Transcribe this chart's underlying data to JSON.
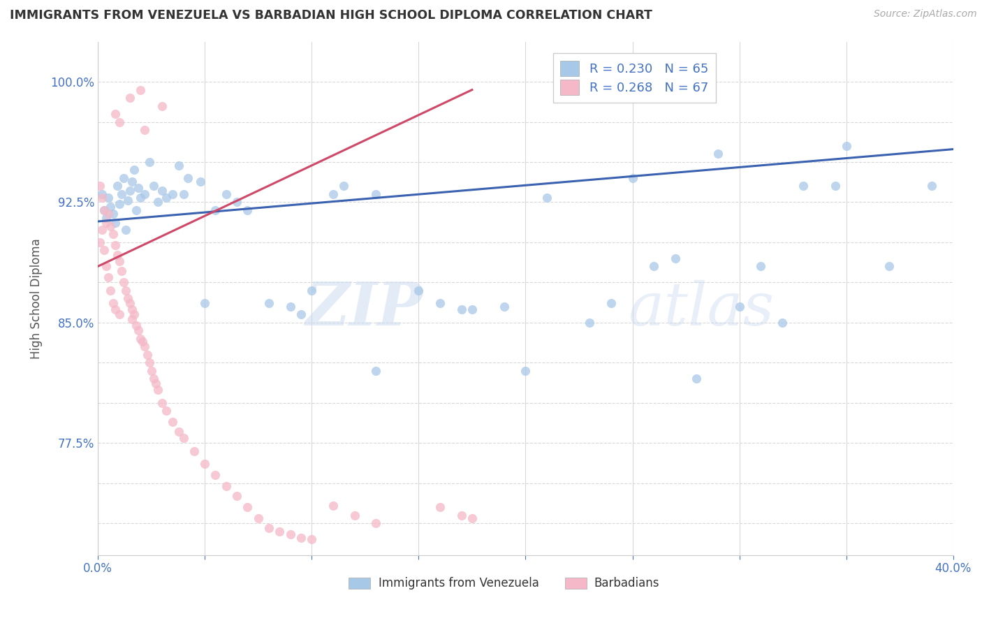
{
  "title": "IMMIGRANTS FROM VENEZUELA VS BARBADIAN HIGH SCHOOL DIPLOMA CORRELATION CHART",
  "source": "Source: ZipAtlas.com",
  "ylabel": "High School Diploma",
  "yticks": [
    0.725,
    0.75,
    0.775,
    0.8,
    0.825,
    0.85,
    0.875,
    0.9,
    0.925,
    0.95,
    0.975,
    1.0
  ],
  "ytick_labels": [
    "",
    "",
    "77.5%",
    "",
    "",
    "85.0%",
    "",
    "",
    "92.5%",
    "",
    "",
    "100.0%"
  ],
  "xlim": [
    0.0,
    0.4
  ],
  "ylim": [
    0.705,
    1.025
  ],
  "watermark_zip": "ZIP",
  "watermark_atlas": "atlas",
  "blue_scatter_x": [
    0.002,
    0.003,
    0.004,
    0.005,
    0.006,
    0.007,
    0.008,
    0.009,
    0.01,
    0.011,
    0.012,
    0.013,
    0.014,
    0.015,
    0.016,
    0.017,
    0.018,
    0.019,
    0.02,
    0.022,
    0.024,
    0.026,
    0.028,
    0.03,
    0.032,
    0.035,
    0.038,
    0.042,
    0.048,
    0.055,
    0.06,
    0.065,
    0.07,
    0.08,
    0.09,
    0.1,
    0.115,
    0.13,
    0.15,
    0.17,
    0.19,
    0.21,
    0.23,
    0.25,
    0.27,
    0.29,
    0.31,
    0.33,
    0.35,
    0.37,
    0.39,
    0.13,
    0.2,
    0.32,
    0.28,
    0.16,
    0.04,
    0.05,
    0.11,
    0.095,
    0.175,
    0.24,
    0.26,
    0.3,
    0.345
  ],
  "blue_scatter_y": [
    0.93,
    0.92,
    0.915,
    0.928,
    0.922,
    0.918,
    0.912,
    0.935,
    0.924,
    0.93,
    0.94,
    0.908,
    0.926,
    0.932,
    0.938,
    0.945,
    0.92,
    0.934,
    0.928,
    0.93,
    0.95,
    0.935,
    0.925,
    0.932,
    0.928,
    0.93,
    0.948,
    0.94,
    0.938,
    0.92,
    0.93,
    0.925,
    0.92,
    0.862,
    0.86,
    0.87,
    0.935,
    0.93,
    0.87,
    0.858,
    0.86,
    0.928,
    0.85,
    0.94,
    0.89,
    0.955,
    0.885,
    0.935,
    0.96,
    0.885,
    0.935,
    0.82,
    0.82,
    0.85,
    0.815,
    0.862,
    0.93,
    0.862,
    0.93,
    0.855,
    0.858,
    0.862,
    0.885,
    0.86,
    0.935
  ],
  "pink_scatter_x": [
    0.001,
    0.001,
    0.002,
    0.002,
    0.003,
    0.003,
    0.004,
    0.004,
    0.005,
    0.005,
    0.006,
    0.006,
    0.007,
    0.007,
    0.008,
    0.008,
    0.009,
    0.01,
    0.01,
    0.011,
    0.012,
    0.013,
    0.014,
    0.015,
    0.016,
    0.016,
    0.017,
    0.018,
    0.019,
    0.02,
    0.021,
    0.022,
    0.023,
    0.024,
    0.025,
    0.026,
    0.027,
    0.028,
    0.03,
    0.032,
    0.035,
    0.038,
    0.04,
    0.045,
    0.05,
    0.055,
    0.06,
    0.065,
    0.07,
    0.075,
    0.08,
    0.085,
    0.09,
    0.095,
    0.1,
    0.11,
    0.12,
    0.13,
    0.16,
    0.17,
    0.175,
    0.02,
    0.015,
    0.03,
    0.008,
    0.01,
    0.022
  ],
  "pink_scatter_y": [
    0.935,
    0.9,
    0.928,
    0.908,
    0.92,
    0.895,
    0.912,
    0.885,
    0.918,
    0.878,
    0.91,
    0.87,
    0.905,
    0.862,
    0.898,
    0.858,
    0.892,
    0.888,
    0.855,
    0.882,
    0.875,
    0.87,
    0.865,
    0.862,
    0.858,
    0.852,
    0.855,
    0.848,
    0.845,
    0.84,
    0.838,
    0.835,
    0.83,
    0.825,
    0.82,
    0.815,
    0.812,
    0.808,
    0.8,
    0.795,
    0.788,
    0.782,
    0.778,
    0.77,
    0.762,
    0.755,
    0.748,
    0.742,
    0.735,
    0.728,
    0.722,
    0.72,
    0.718,
    0.716,
    0.715,
    0.736,
    0.73,
    0.725,
    0.735,
    0.73,
    0.728,
    0.995,
    0.99,
    0.985,
    0.98,
    0.975,
    0.97
  ],
  "blue_line_x": [
    0.0,
    0.4
  ],
  "blue_line_y": [
    0.913,
    0.958
  ],
  "pink_line_x": [
    0.0,
    0.175
  ],
  "pink_line_y": [
    0.885,
    0.995
  ],
  "blue_color": "#a8c8e8",
  "pink_color": "#f4b8c8",
  "blue_line_color": "#3a62b0",
  "pink_line_color": "#d04868",
  "background_color": "#ffffff",
  "grid_color": "#d8d8d8",
  "title_color": "#333333",
  "axis_color": "#4472c4",
  "legend_blue_label": "R = 0.230   N = 65",
  "legend_pink_label": "R = 0.268   N = 67",
  "bottom_label1": "Immigrants from Venezuela",
  "bottom_label2": "Barbadians"
}
